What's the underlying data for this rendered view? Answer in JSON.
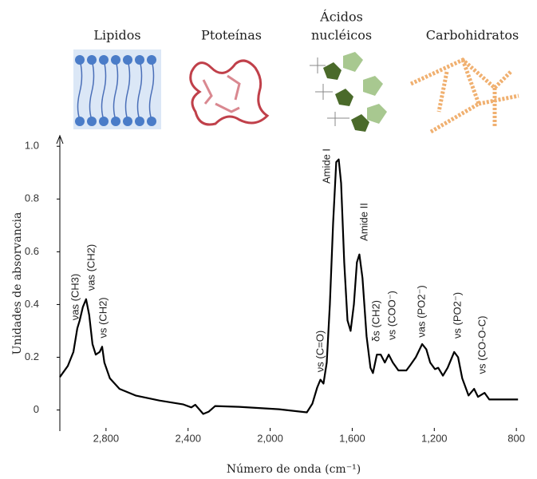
{
  "chart_data": {
    "type": "line",
    "y_label": "Unidades de absorvancia",
    "x_label": "Número de onda (cm⁻¹)",
    "top_labels": [
      "Lipidos",
      "Ptoteínas",
      "Ácidos",
      "nucléicos",
      "Carbohidratos"
    ],
    "xlim": [
      3025,
      750
    ],
    "ylim": [
      -0.08,
      1.04
    ],
    "xticks": [
      {
        "value": 2800,
        "label": "2,800"
      },
      {
        "value": 2400,
        "label": "2,400"
      },
      {
        "value": 2000,
        "label": "2,000"
      },
      {
        "value": 1600,
        "label": "1,600"
      },
      {
        "value": 1200,
        "label": "1,200"
      },
      800
    ],
    "yticks": [
      0,
      0.2,
      0.4,
      0.6,
      0.8,
      {
        "value": 1,
        "label": "1.0"
      }
    ],
    "x": [
      3025,
      2986,
      2959,
      2940,
      2928,
      2913,
      2897,
      2882,
      2866,
      2850,
      2831,
      2819,
      2808,
      2781,
      2734,
      2656,
      2540,
      2423,
      2384,
      2365,
      2326,
      2299,
      2268,
      2151,
      1957,
      1821,
      1794,
      1771,
      1755,
      1740,
      1724,
      1709,
      1693,
      1678,
      1666,
      1654,
      1639,
      1623,
      1608,
      1592,
      1577,
      1565,
      1550,
      1530,
      1511,
      1499,
      1480,
      1461,
      1441,
      1422,
      1402,
      1375,
      1336,
      1317,
      1290,
      1259,
      1239,
      1220,
      1197,
      1181,
      1158,
      1135,
      1103,
      1084,
      1064,
      1033,
      1006,
      987,
      955,
      932,
      889,
      792
    ],
    "series": [
      {
        "color": "#000000",
        "values": [
          0.125,
          0.167,
          0.22,
          0.31,
          0.34,
          0.39,
          0.42,
          0.36,
          0.25,
          0.21,
          0.22,
          0.24,
          0.18,
          0.12,
          0.08,
          0.055,
          0.036,
          0.021,
          0.01,
          0.02,
          -0.015,
          -0.006,
          0.015,
          0.012,
          0.003,
          -0.009,
          0.024,
          0.085,
          0.115,
          0.1,
          0.18,
          0.4,
          0.71,
          0.94,
          0.95,
          0.86,
          0.56,
          0.34,
          0.3,
          0.4,
          0.56,
          0.59,
          0.5,
          0.28,
          0.16,
          0.14,
          0.21,
          0.21,
          0.18,
          0.21,
          0.18,
          0.15,
          0.15,
          0.17,
          0.2,
          0.25,
          0.23,
          0.18,
          0.155,
          0.16,
          0.13,
          0.16,
          0.22,
          0.2,
          0.12,
          0.055,
          0.08,
          0.05,
          0.065,
          0.04,
          0.04,
          0.04
        ]
      }
    ],
    "annotations": [
      {
        "text": "νas (CH3)",
        "color": "#4a86c8"
      },
      {
        "text": "νas (CH2)",
        "color": "#4a86c8"
      },
      {
        "text": "νs (CH2)",
        "color": "#4a86c8"
      },
      {
        "text": "Amide I",
        "color": "#a83a4a"
      },
      {
        "text": "Amide II",
        "color": "#a83a4a"
      },
      {
        "text": "νs (C=O)",
        "color": "#4a86c8"
      },
      {
        "text": "δs (CH2)",
        "color": "#4a86c8"
      },
      {
        "text": "νs (COO⁻)",
        "color": "#a83a4a"
      },
      {
        "text": "νas (PO2⁻)",
        "color": "#7aa83a"
      },
      {
        "text": "νs (PO2⁻)",
        "color": "#7aa83a"
      },
      {
        "text": "νs (CO-O-C)",
        "color": "#e07a3a"
      }
    ]
  }
}
